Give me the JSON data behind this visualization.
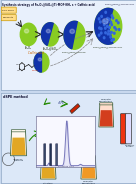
{
  "outer_bg": "#c8d8ee",
  "top_panel_bg": "#e8f0fc",
  "bottom_panel_bg": "#dce8f8",
  "panel_border": "#9ab0cc",
  "top_title": "Synthesis strategy of Fe3O4@SiO2@Ti-MOF-NH2 s + Caffeic acid",
  "top_right_label": "Fe3O4@SiO2@Ti-MOF-NH2",
  "bottom_title": "dSPE method",
  "sphere1_green": "#88cc22",
  "sphere_blue": "#1133aa",
  "sphere_green_accent": "#77bb11",
  "sphere_dot_blue": "#3366dd",
  "sphere_dot_green": "#55aa00",
  "arrow_color": "#222222",
  "arrow_green": "#228800",
  "label_dark": "#112233",
  "caffeic_orange": "#cc6600",
  "box_yellow": "#ffdd88",
  "box_yellow_edge": "#cc9900",
  "hplc_bg": "#f8f8ff",
  "hplc_line": "#7777bb",
  "hplc_peak_fill": "#aaaadd",
  "beaker_orange": "#dd9900",
  "beaker_orange2": "#ee8800",
  "beaker_red": "#cc2200",
  "beaker_glass": "#ddeecc",
  "green_arrow": "#228800",
  "magnet_red": "#cc1111",
  "magnet_blue": "#1111cc"
}
